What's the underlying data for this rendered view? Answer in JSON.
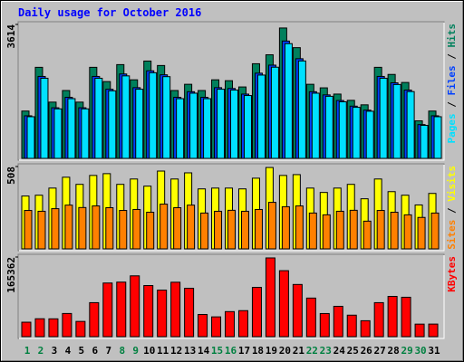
{
  "title": "Daily usage for October 2016",
  "legend_separator": "/",
  "chart_data": [
    {
      "type": "bar",
      "categories": [
        "1",
        "2",
        "3",
        "4",
        "5",
        "6",
        "7",
        "8",
        "9",
        "10",
        "11",
        "12",
        "13",
        "14",
        "15",
        "16",
        "17",
        "18",
        "19",
        "20",
        "21",
        "22",
        "23",
        "24",
        "25",
        "26",
        "27",
        "28",
        "29",
        "30",
        "31"
      ],
      "category_colors": [
        "#008040",
        "#008040",
        "#000000",
        "#000000",
        "#000000",
        "#000000",
        "#000000",
        "#008040",
        "#008040",
        "#000000",
        "#000000",
        "#000000",
        "#000000",
        "#000000",
        "#008040",
        "#008040",
        "#000000",
        "#000000",
        "#000000",
        "#000000",
        "#000000",
        "#008040",
        "#008040",
        "#000000",
        "#000000",
        "#000000",
        "#000000",
        "#000000",
        "#008040",
        "#008040",
        "#000000"
      ],
      "ylim": [
        0,
        3614
      ],
      "yticks": [
        3614
      ],
      "series": [
        {
          "name": "Pages",
          "color": "#00e0ff",
          "values": [
            1124,
            2162,
            1336,
            1611,
            1336,
            2162,
            1823,
            2226,
            1866,
            2311,
            2205,
            1611,
            1759,
            1611,
            1866,
            1844,
            1696,
            2248,
            2460,
            3096,
            2629,
            1759,
            1675,
            1527,
            1378,
            1272,
            2162,
            1993,
            1802,
            891,
            1124
          ]
        },
        {
          "name": "Files",
          "color": "#0040ff",
          "values": [
            1149,
            2211,
            1366,
            1648,
            1366,
            2211,
            1865,
            2277,
            1908,
            2363,
            2255,
            1648,
            1799,
            1648,
            1908,
            1886,
            1734,
            2299,
            2516,
            3166,
            2689,
            1799,
            1713,
            1562,
            1409,
            1301,
            2211,
            2039,
            1843,
            912,
            1149
          ]
        },
        {
          "name": "Hits",
          "color": "#00805c",
          "values": [
            1277,
            2457,
            1518,
            1831,
            1518,
            2457,
            2072,
            2530,
            2120,
            2626,
            2506,
            1831,
            1999,
            1831,
            2120,
            2096,
            1927,
            2554,
            2795,
            3518,
            2988,
            1999,
            1903,
            1735,
            1566,
            1445,
            2457,
            2265,
            2048,
            1013,
            1277
          ]
        }
      ]
    },
    {
      "type": "bar",
      "ylim": [
        0,
        508
      ],
      "yticks": [
        508
      ],
      "series": [
        {
          "name": "Sites",
          "color": "#ff8000",
          "values": [
            237,
            232,
            248,
            270,
            255,
            265,
            254,
            237,
            243,
            226,
            276,
            254,
            270,
            221,
            232,
            238,
            232,
            243,
            287,
            260,
            265,
            221,
            210,
            232,
            238,
            171,
            237,
            226,
            210,
            194,
            221
          ]
        },
        {
          "name": "Visits",
          "color": "#ffff00",
          "values": [
            326,
            331,
            375,
            442,
            398,
            453,
            464,
            398,
            431,
            387,
            480,
            431,
            469,
            370,
            375,
            375,
            370,
            436,
            502,
            453,
            458,
            375,
            348,
            375,
            398,
            309,
            431,
            353,
            331,
            271,
            342
          ]
        }
      ]
    },
    {
      "type": "bar",
      "ylim": [
        0,
        165362
      ],
      "yticks": [
        165362
      ],
      "series": [
        {
          "name": "KBytes",
          "color": "#ff0000",
          "values": [
            30012,
            37191,
            37035,
            48112,
            31647,
            70612,
            111402,
            113240,
            126310,
            106120,
            96598,
            113022,
            100410,
            46050,
            41090,
            52021,
            54010,
            102330,
            163490,
            137020,
            108370,
            80115,
            48002,
            63012,
            44610,
            33084,
            70612,
            83601,
            81830,
            26010,
            26102
          ]
        }
      ]
    }
  ]
}
